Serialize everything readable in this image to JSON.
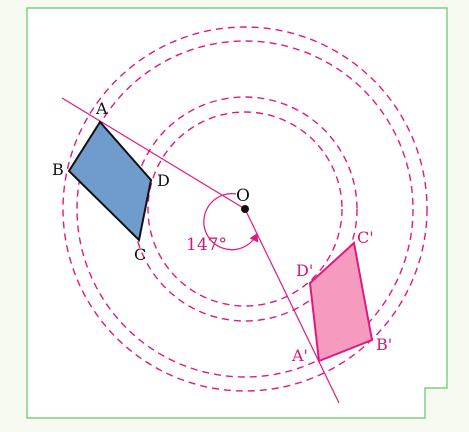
{
  "diagram": {
    "rotation_angle_label": "147°",
    "center_label": "O",
    "original_vertex_labels": {
      "A": "A",
      "B": "B",
      "C": "C",
      "D": "D"
    },
    "image_vertex_labels": {
      "A": "A'",
      "B": "B'",
      "C": "C'",
      "D": "D'"
    },
    "colors": {
      "page_background": "#f7faf0",
      "frame_border": "#66c466",
      "original_fill": "#6f9ccc",
      "original_stroke": "#111111",
      "image_fill": "#f59bc0",
      "image_stroke": "#e0197f",
      "construction_lines": "#e0197f",
      "label_text": "#111111",
      "image_label_text": "#d21878"
    }
  }
}
